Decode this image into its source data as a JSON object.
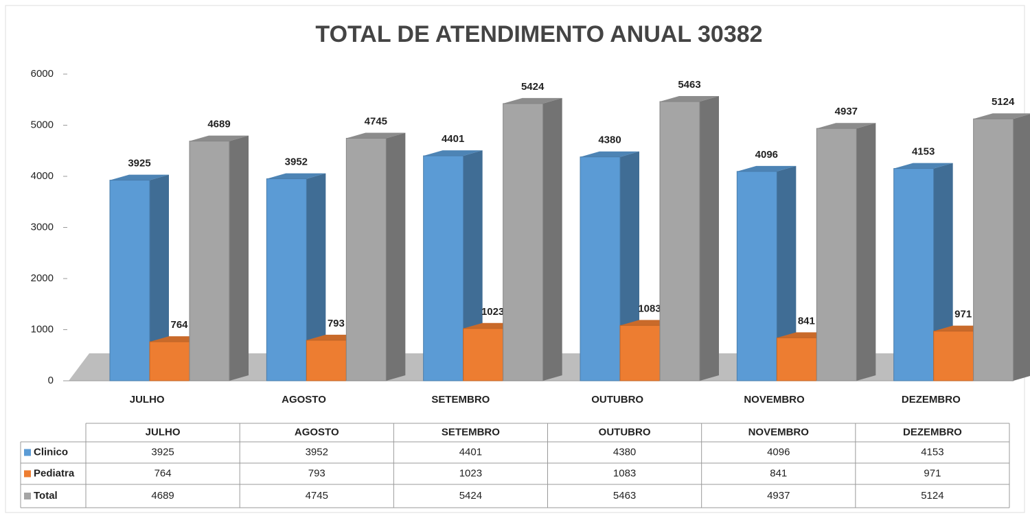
{
  "chart_data": {
    "type": "bar3d",
    "title": "TOTAL DE ATENDIMENTO ANUAL 30382",
    "categories": [
      "JULHO",
      "AGOSTO",
      "SETEMBRO",
      "OUTUBRO",
      "NOVEMBRO",
      "DEZEMBRO"
    ],
    "series": [
      {
        "name": "Clinico",
        "color": "#5b9bd5",
        "values": [
          3925,
          3952,
          4401,
          4380,
          4096,
          4153
        ]
      },
      {
        "name": "Pediatra",
        "color": "#ed7d31",
        "values": [
          764,
          793,
          1023,
          1083,
          841,
          971
        ]
      },
      {
        "name": "Total",
        "color": "#a5a5a5",
        "values": [
          4689,
          4745,
          5424,
          5463,
          4937,
          5124
        ]
      }
    ],
    "ylim": [
      0,
      6000
    ],
    "yticks": [
      0,
      1000,
      2000,
      3000,
      4000,
      5000,
      6000
    ],
    "grid": false,
    "data_table": true
  }
}
